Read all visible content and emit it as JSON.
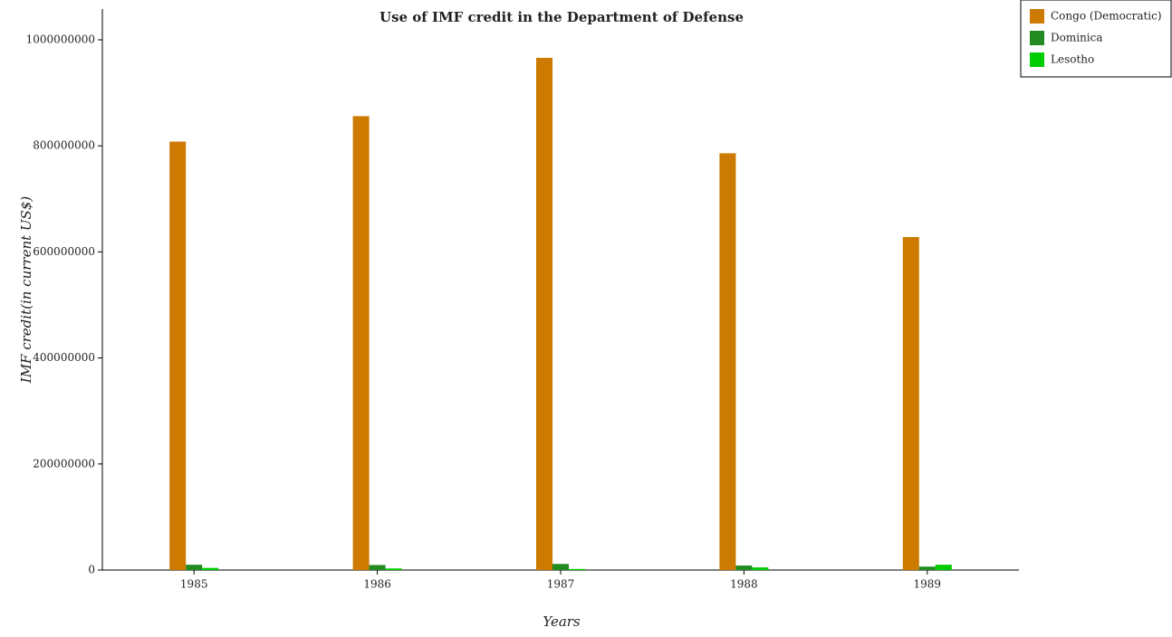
{
  "chart_data": {
    "type": "bar",
    "title": "Use of IMF credit in the Department of Defense",
    "x_label": "Years",
    "y_label": "IMF credit(in current US$)",
    "categories": [
      "1985",
      "1986",
      "1987",
      "1988",
      "1989"
    ],
    "series": [
      {
        "name": "Congo (Democratic)",
        "color": "#cc7a00",
        "values": [
          808000000,
          856000000,
          966000000,
          786000000,
          628000000
        ]
      },
      {
        "name": "Dominica",
        "color": "#228b22",
        "values": [
          10000000,
          9500000,
          11500000,
          8500000,
          6500000
        ]
      },
      {
        "name": "Lesotho",
        "color": "#00cc00",
        "values": [
          4000000,
          3000000,
          2000000,
          5000000,
          10000000
        ]
      }
    ],
    "ylim": [
      0,
      1058000000
    ],
    "yticks": [
      0,
      200000000,
      400000000,
      600000000,
      800000000,
      1000000000
    ],
    "legend": "upper right"
  }
}
